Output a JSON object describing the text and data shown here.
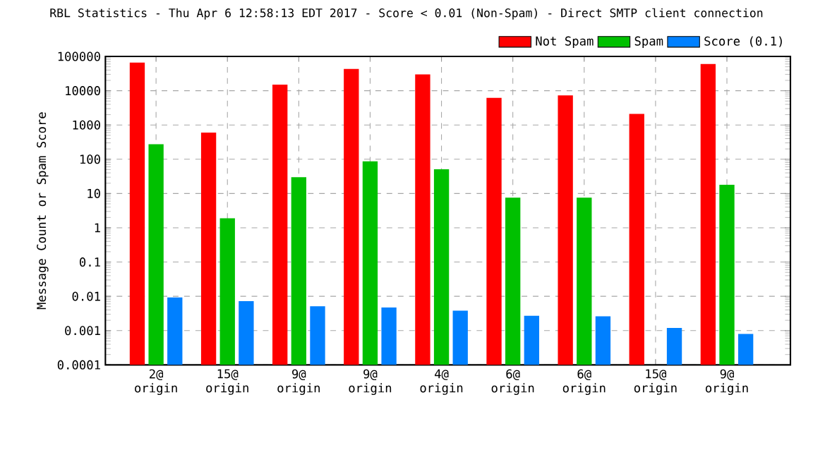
{
  "chart_data": {
    "type": "bar",
    "title": "RBL Statistics - Thu Apr  6 12:58:13 EDT 2017 - Score < 0.01 (Non-Spam) - Direct SMTP client connection",
    "ylabel": "Message Count or Spam Score",
    "categories": [
      "2@ origin",
      "15@ origin",
      "9@ origin",
      "9@ origin",
      "4@ origin",
      "6@ origin",
      "6@ origin",
      "15@ origin",
      "9@ origin"
    ],
    "series": [
      {
        "name": "Not Spam",
        "color": "#ff0000",
        "values": [
          66000,
          600,
          15000,
          43000,
          30000,
          6200,
          7300,
          2100,
          60000
        ]
      },
      {
        "name": "Spam",
        "color": "#00c000",
        "values": [
          275,
          1.9,
          30,
          87,
          51,
          7.6,
          7.6,
          null,
          18
        ]
      },
      {
        "name": "Score (0.1)",
        "color": "#0080ff",
        "values": [
          0.0093,
          0.0072,
          0.0051,
          0.0047,
          0.0038,
          0.0027,
          0.0026,
          0.0012,
          0.0008
        ]
      }
    ],
    "log": true,
    "ylim": [
      0.0001,
      100000
    ],
    "yticks": [
      0.0001,
      0.001,
      0.01,
      0.1,
      1,
      10,
      100,
      1000,
      10000,
      100000
    ],
    "grid": true,
    "legend": "top right"
  }
}
